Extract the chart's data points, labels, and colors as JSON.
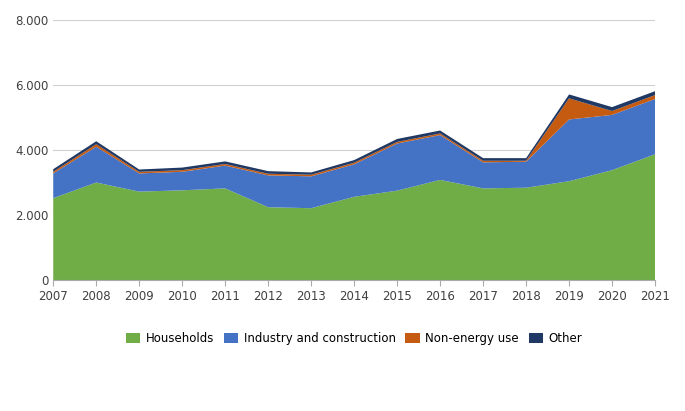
{
  "years": [
    2007,
    2008,
    2009,
    2010,
    2011,
    2012,
    2013,
    2014,
    2015,
    2016,
    2017,
    2018,
    2019,
    2020,
    2021
  ],
  "households": [
    2520,
    3000,
    2720,
    2760,
    2820,
    2240,
    2210,
    2560,
    2750,
    3080,
    2820,
    2840,
    3040,
    3380,
    3870
  ],
  "industry_and_construction": [
    760,
    1100,
    560,
    570,
    700,
    980,
    980,
    1000,
    1450,
    1380,
    800,
    800,
    1900,
    1700,
    1700
  ],
  "non_energy_use": [
    50,
    80,
    50,
    50,
    50,
    50,
    50,
    50,
    50,
    50,
    50,
    30,
    650,
    120,
    120
  ],
  "other": [
    80,
    90,
    70,
    80,
    80,
    80,
    70,
    80,
    90,
    90,
    80,
    80,
    120,
    120,
    120
  ],
  "colors": {
    "households": "#70ad47",
    "industry_and_construction": "#4472c4",
    "non_energy_use": "#c55a11",
    "other": "#1f3864"
  },
  "legend_labels": [
    "Households",
    "Industry and construction",
    "Non-energy use",
    "Other"
  ],
  "ylim": [
    0,
    8000
  ],
  "yticks": [
    0,
    2000,
    4000,
    6000,
    8000
  ],
  "ytick_labels": [
    "0",
    "2.000",
    "4.000",
    "6.000",
    "8.000"
  ],
  "background_color": "#ffffff",
  "grid_color": "#d0d0d0"
}
